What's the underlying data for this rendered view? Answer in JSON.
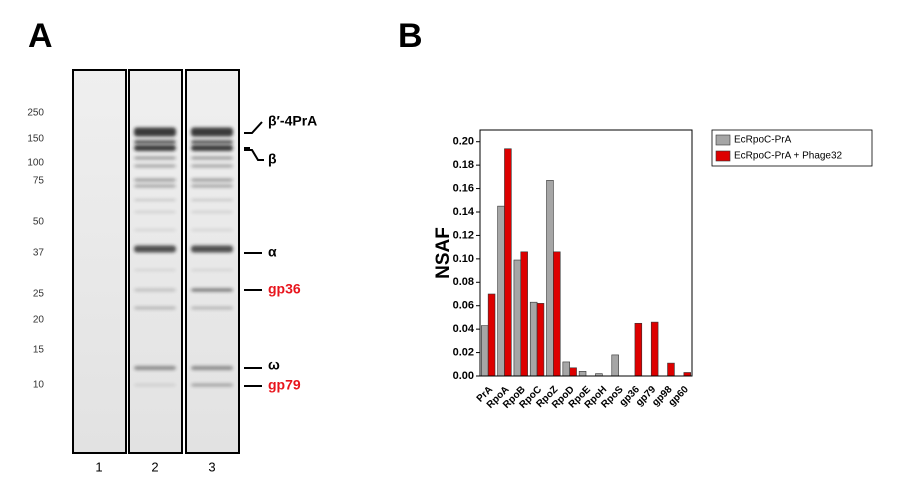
{
  "panels": [
    "A",
    "B"
  ],
  "gel": {
    "markers": [
      "250",
      "150",
      "100",
      "75",
      "50",
      "37",
      "25",
      "20",
      "15",
      "10"
    ],
    "lanes": [
      "1",
      "2",
      "3"
    ],
    "bands": [
      {
        "label": "β′-4PrA",
        "color": "#000000"
      },
      {
        "label": "β",
        "color": "#000000"
      },
      {
        "label": "α",
        "color": "#000000"
      },
      {
        "label": "gp36",
        "color": "#e8141c"
      },
      {
        "label": "ω",
        "color": "#000000"
      },
      {
        "label": "gp79",
        "color": "#e8141c"
      }
    ]
  },
  "chart_data": {
    "type": "bar",
    "ylabel": "NSAF",
    "categories": [
      "PrA",
      "RpoA",
      "RpoB",
      "RpoC",
      "RpoZ",
      "RpoD",
      "RpoE",
      "RpoH",
      "RpoS",
      "gp36",
      "gp79",
      "gp98",
      "gp60"
    ],
    "series": [
      {
        "name": "EcRpoC-PrA",
        "color": "#a6a6a6",
        "values": [
          0.043,
          0.145,
          0.099,
          0.063,
          0.167,
          0.012,
          0.004,
          0.002,
          0.018,
          0,
          0,
          0,
          0
        ]
      },
      {
        "name": "EcRpoC-PrA + Phage32",
        "color": "#dd0000",
        "values": [
          0.07,
          0.194,
          0.106,
          0.062,
          0.106,
          0.007,
          0,
          0,
          0,
          0.045,
          0.046,
          0.011,
          0.003
        ]
      }
    ],
    "ylim": [
      0,
      0.21
    ],
    "yticks": [
      {
        "value": 0,
        "label": "0.00"
      },
      {
        "value": 0.02,
        "label": "0.02"
      },
      {
        "value": 0.04,
        "label": "0.04"
      },
      {
        "value": 0.06,
        "label": "0.06"
      },
      {
        "value": 0.08,
        "label": "0.08"
      },
      {
        "value": 0.1,
        "label": "0.10"
      },
      {
        "value": 0.12,
        "label": "0.12"
      },
      {
        "value": 0.14,
        "label": "0.14"
      },
      {
        "value": 0.16,
        "label": "0.16"
      },
      {
        "value": 0.18,
        "label": "0.18"
      },
      {
        "value": 0.2,
        "label": "0.20"
      }
    ],
    "legend": "upper right"
  }
}
